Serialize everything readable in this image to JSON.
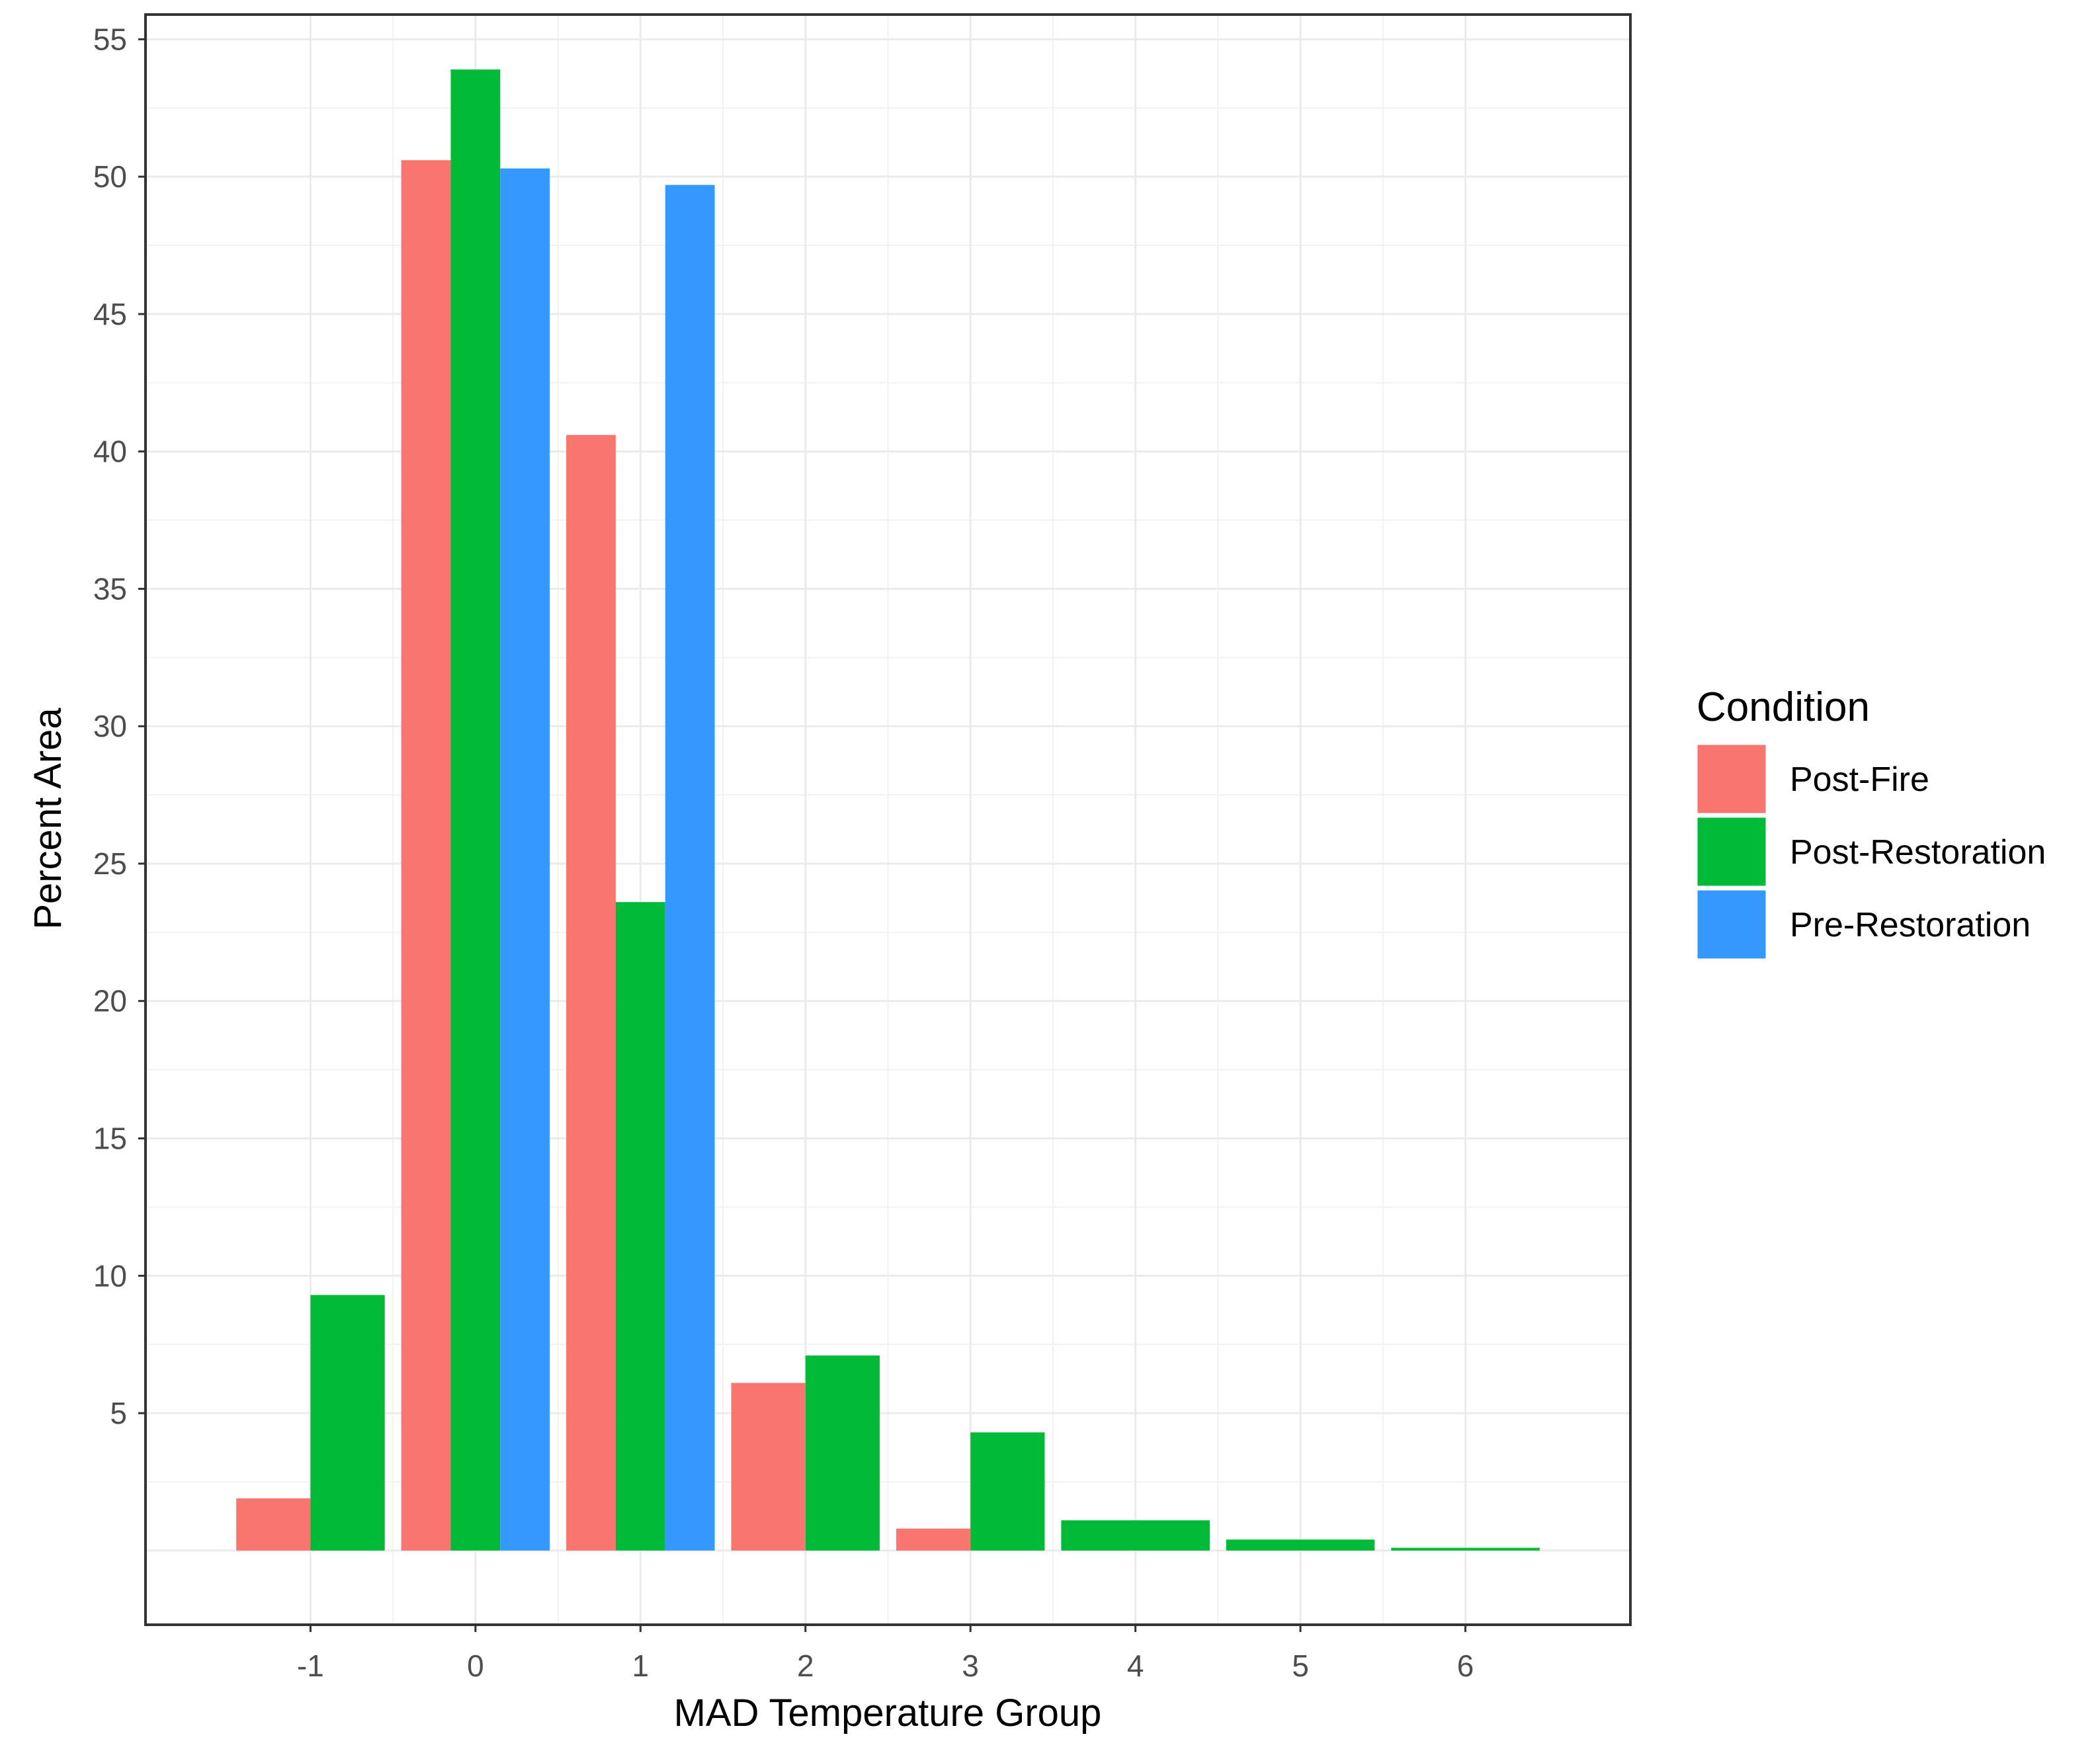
{
  "chart_data": {
    "type": "bar",
    "title": "",
    "xlabel": "MAD Temperature Group",
    "ylabel": "Percent Area",
    "x_ticks": [
      "-1",
      "0",
      "1",
      "2",
      "3",
      "4",
      "5",
      "6"
    ],
    "y_ticks": [
      5,
      10,
      15,
      20,
      25,
      30,
      35,
      40,
      45,
      50,
      55
    ],
    "xlim": [
      -2,
      7
    ],
    "ylim": [
      -2.7,
      55.9
    ],
    "grid": true,
    "legend": {
      "title": "Condition",
      "position": "right"
    },
    "series": [
      {
        "name": "Post-Fire",
        "color": "#F8766D",
        "points": [
          {
            "x": -1,
            "value": 1.9
          },
          {
            "x": 0,
            "value": 50.6
          },
          {
            "x": 1,
            "value": 40.6
          },
          {
            "x": 2,
            "value": 6.1
          },
          {
            "x": 3,
            "value": 0.8
          }
        ]
      },
      {
        "name": "Post-Restoration",
        "color": "#00BA38",
        "points": [
          {
            "x": -1,
            "value": 9.3
          },
          {
            "x": 0,
            "value": 53.9
          },
          {
            "x": 1,
            "value": 23.6
          },
          {
            "x": 2,
            "value": 7.1
          },
          {
            "x": 3,
            "value": 4.3
          },
          {
            "x": 4,
            "value": 1.1
          },
          {
            "x": 5,
            "value": 0.4
          },
          {
            "x": 6,
            "value": 0.1
          }
        ]
      },
      {
        "name": "Pre-Restoration",
        "color": "#3399FF",
        "points": [
          {
            "x": 0,
            "value": 50.3
          },
          {
            "x": 1,
            "value": 49.7
          }
        ]
      }
    ]
  }
}
